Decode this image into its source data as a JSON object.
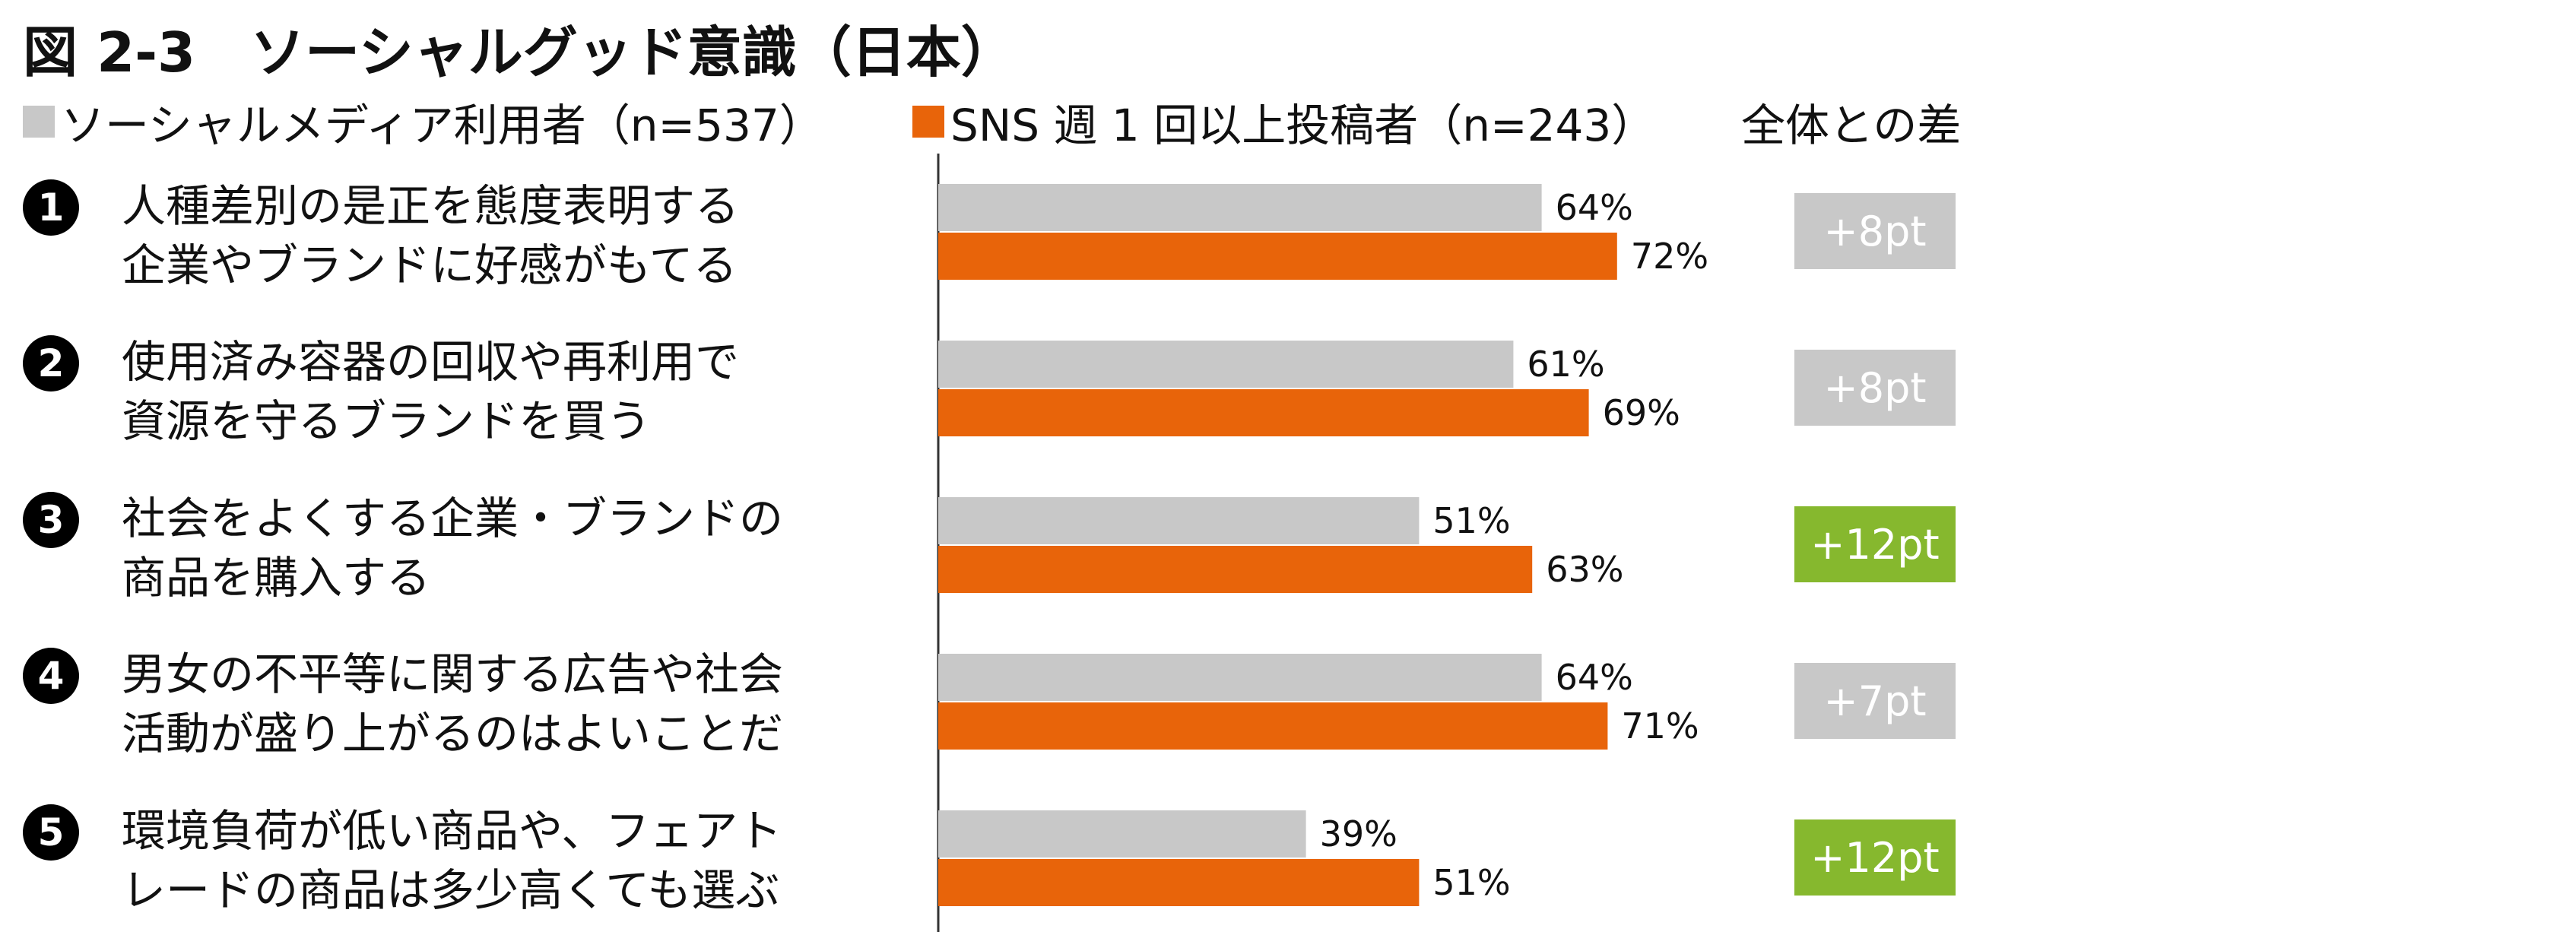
{
  "title": "図 2-3　ソーシャルグッド意識（日本）",
  "legend": [
    {
      "label": "ソーシャルメディア利用者（n=537）",
      "color": "#c8c8c8"
    },
    {
      "label": "SNS 週 1 回以上投稿者（n=243）",
      "color": "#e8640a"
    }
  ],
  "diff_header": "全体との差",
  "items": [
    {
      "num": "1",
      "lines": [
        "人種差別の是正を態度表明する",
        "企業やブランドに好感がもてる"
      ],
      "diff": "+8pt"
    },
    {
      "num": "2",
      "lines": [
        "使用済み容器の回収や再利用で",
        "資源を守るブランドを買う"
      ],
      "diff": "+8pt"
    },
    {
      "num": "3",
      "lines": [
        "社会をよくする企業・ブランドの",
        "商品を購入する"
      ],
      "diff": "+12pt"
    },
    {
      "num": "4",
      "lines": [
        "男女の不平等に関する広告や社会",
        "活動が盛り上がるのはよいことだ"
      ],
      "diff": "+7pt"
    },
    {
      "num": "5",
      "lines": [
        "環境負荷が低い商品や、フェアト",
        "レードの商品は多少高くても選ぶ"
      ],
      "diff": "+12pt"
    }
  ],
  "chart_data": {
    "type": "bar",
    "orientation": "horizontal",
    "categories": [
      "人種差別の是正を態度表明する企業やブランドに好感がもてる",
      "使用済み容器の回収や再利用で資源を守るブランドを買う",
      "社会をよくする企業・ブランドの商品を購入する",
      "男女の不平等に関する広告や社会活動が盛り上がるのはよいことだ",
      "環境負荷が低い商品や、フェアトレードの商品は多少高くても選ぶ"
    ],
    "series": [
      {
        "name": "ソーシャルメディア利用者（n=537）",
        "color": "#c8c8c8",
        "values": [
          64,
          61,
          51,
          64,
          39
        ],
        "labels": [
          "64%",
          "61%",
          "51%",
          "64%",
          "39%"
        ]
      },
      {
        "name": "SNS 週 1 回以上投稿者（n=243）",
        "color": "#e8640a",
        "values": [
          72,
          69,
          63,
          71,
          51
        ],
        "labels": [
          "72%",
          "69%",
          "63%",
          "71%",
          "51%"
        ]
      }
    ],
    "differences": [
      {
        "label": "+8pt",
        "highlight": false
      },
      {
        "label": "+8pt",
        "highlight": false
      },
      {
        "label": "+12pt",
        "highlight": true
      },
      {
        "label": "+7pt",
        "highlight": false
      },
      {
        "label": "+12pt",
        "highlight": true
      }
    ],
    "badge_colors": {
      "normal": "#c8c8c8",
      "highlight": "#86b82e"
    },
    "unit": "%",
    "xlim": [
      0,
      100
    ],
    "grid": false,
    "legend_position": "top"
  }
}
